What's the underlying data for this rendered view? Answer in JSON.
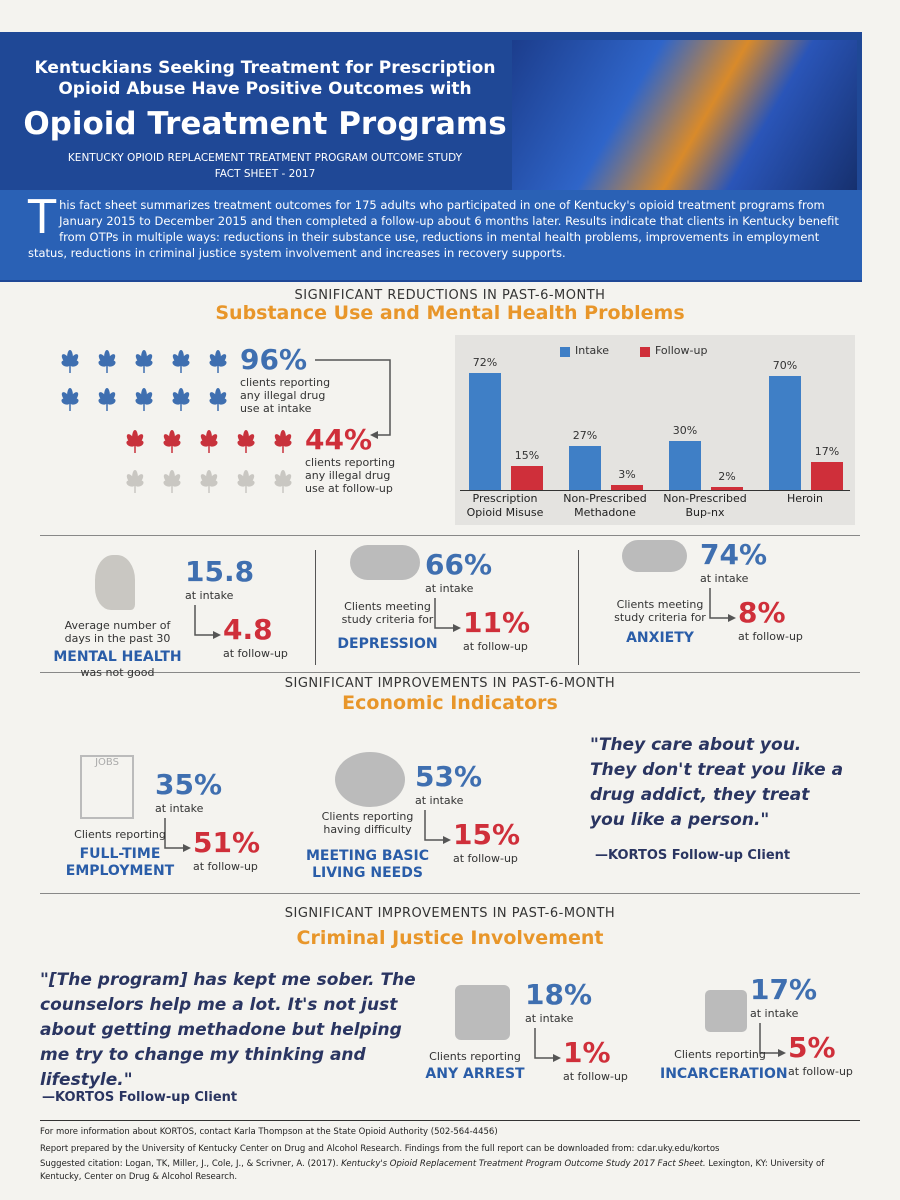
{
  "header": {
    "line1": "Kentuckians Seeking Treatment for Prescription Opioid Abuse Have Positive Outcomes with",
    "main": "Opioid Treatment Programs",
    "subtitle": "KENTUCKY OPIOID REPLACEMENT TREATMENT PROGRAM OUTCOME STUDY",
    "subtitle2": "FACT SHEET - 2017"
  },
  "intro": "This fact sheet summarizes treatment outcomes for 175 adults who participated in one of Kentucky's opioid treatment programs from January 2015 to December 2015 and then completed a follow-up about 6 months later. Results indicate that clients in Kentucky benefit from OTPs in multiple ways: reductions in their substance use, reductions in mental health problems, improvements in employment status, reductions in criminal justice system involvement and increases in recovery supports.",
  "substance": {
    "kicker": "SIGNIFICANT REDUCTIONS IN PAST-6-MONTH",
    "heading": "Substance Use and Mental Health Problems",
    "drug_intake": {
      "value": "96%",
      "text": "clients reporting any illegal drug use at intake"
    },
    "drug_followup": {
      "value": "44%",
      "text": "clients reporting any illegal drug use at follow-up"
    }
  },
  "chart_data": {
    "type": "bar",
    "categories": [
      "Prescription Opioid Misuse",
      "Non-Prescribed Methadone",
      "Non-Prescribed Bup-nx",
      "Heroin"
    ],
    "series": [
      {
        "name": "Intake",
        "color": "#3f7fc6",
        "values": [
          72,
          27,
          30,
          70
        ],
        "value_labels": [
          "72%",
          "27%",
          "30%",
          "70%"
        ]
      },
      {
        "name": "Follow-up",
        "color": "#cf2f3a",
        "values": [
          15,
          3,
          2,
          17
        ],
        "value_labels": [
          "15%",
          "3%",
          "2%",
          "17%"
        ]
      }
    ],
    "ylim": [
      0,
      80
    ],
    "legend": "top-right"
  },
  "mental": [
    {
      "intake": "15.8",
      "intake_label": "at intake",
      "followup": "4.8",
      "followup_label": "at follow-up",
      "desc": "Average number of days in the past 30",
      "label": "MENTAL HEALTH",
      "note": "was not good"
    },
    {
      "intake": "66%",
      "intake_label": "at intake",
      "followup": "11%",
      "followup_label": "at follow-up",
      "desc": "Clients meeting study criteria for",
      "label": "DEPRESSION"
    },
    {
      "intake": "74%",
      "intake_label": "at intake",
      "followup": "8%",
      "followup_label": "at follow-up",
      "desc": "Clients meeting study criteria for",
      "label": "ANXIETY"
    }
  ],
  "economic": {
    "kicker": "SIGNIFICANT IMPROVEMENTS IN PAST-6-MONTH",
    "heading": "Economic Indicators",
    "icon_text": "JOBS",
    "items": [
      {
        "intake": "35%",
        "intake_label": "at intake",
        "followup": "51%",
        "followup_label": "at follow-up",
        "desc": "Clients reporting",
        "label": "FULL-TIME EMPLOYMENT"
      },
      {
        "intake": "53%",
        "intake_label": "at intake",
        "followup": "15%",
        "followup_label": "at follow-up",
        "desc": "Clients reporting having difficulty",
        "label": "MEETING BASIC LIVING NEEDS"
      }
    ],
    "quote": "\"They care about you. They don't treat you like a drug addict, they treat you like a person.\"",
    "attribution": "—KORTOS Follow-up Client"
  },
  "criminal": {
    "kicker": "SIGNIFICANT IMPROVEMENTS IN PAST-6-MONTH",
    "heading": "Criminal Justice Involvement",
    "quote": "\"[The program] has kept me sober. The counselors help me a lot. It's not just about getting methadone but helping me try to change my thinking and lifestyle.\"",
    "attribution": "—KORTOS Follow-up Client",
    "items": [
      {
        "intake": "18%",
        "intake_label": "at intake",
        "followup": "1%",
        "followup_label": "at follow-up",
        "desc": "Clients reporting",
        "label": "ANY ARREST"
      },
      {
        "intake": "17%",
        "intake_label": "at intake",
        "followup": "5%",
        "followup_label": "at follow-up",
        "desc": "Clients reporting",
        "label": "INCARCERATION"
      }
    ]
  },
  "footer": {
    "contact": "For more information about KORTOS, contact Karla Thompson at the State Opioid Authority (502-564-4456)",
    "report": "Report prepared by the University of Kentucky Center on Drug and Alcohol Research. Findings from the full report can be downloaded from: cdar.uky.edu/kortos",
    "citation_pre": "Suggested citation: Logan, TK, Miller, J., Cole, J., & Scrivner, A. (2017). ",
    "citation_title": "Kentucky's Opioid Replacement Treatment Program Outcome Study 2017 Fact Sheet.",
    "citation_post": " Lexington, KY: University of Kentucky, Center on Drug & Alcohol Research."
  }
}
